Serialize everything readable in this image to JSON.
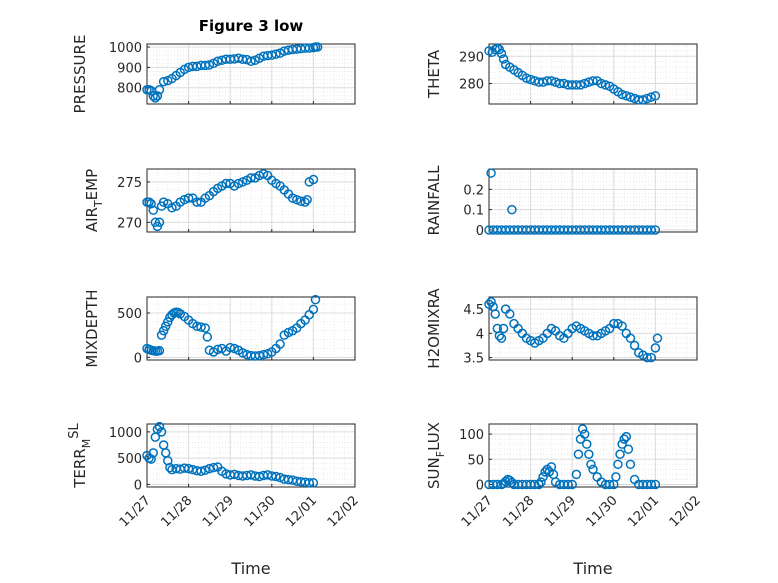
{
  "figure": {
    "title": "Figure 3 low"
  },
  "colors": {
    "series": "#0072BD",
    "axis": "#262626"
  },
  "chart_data": [
    {
      "type": "scatter",
      "id": "pressure",
      "ylabel": "PRESSURE",
      "xlabel": "",
      "ylim": [
        720,
        1015
      ],
      "yticks": [
        800,
        900,
        1000
      ],
      "xticks": [],
      "xlim": [
        0,
        5
      ],
      "x": [
        0,
        0.05,
        0.1,
        0.15,
        0.2,
        0.25,
        0.3,
        0.4,
        0.5,
        0.6,
        0.7,
        0.8,
        0.9,
        1.0,
        1.1,
        1.2,
        1.3,
        1.4,
        1.5,
        1.6,
        1.7,
        1.8,
        1.9,
        2.0,
        2.1,
        2.2,
        2.3,
        2.4,
        2.5,
        2.6,
        2.7,
        2.8,
        2.9,
        3.0,
        3.1,
        3.2,
        3.3,
        3.4,
        3.5,
        3.6,
        3.7,
        3.8,
        3.9,
        4.0,
        4.05,
        4.1
      ],
      "y": [
        790,
        790,
        785,
        760,
        750,
        760,
        790,
        830,
        835,
        845,
        860,
        875,
        890,
        900,
        905,
        905,
        910,
        910,
        912,
        920,
        930,
        935,
        940,
        940,
        942,
        945,
        940,
        938,
        930,
        935,
        945,
        955,
        958,
        960,
        965,
        970,
        980,
        985,
        988,
        990,
        992,
        995,
        995,
        997,
        1000,
        1000
      ]
    },
    {
      "type": "scatter",
      "id": "theta",
      "ylabel": "THETA",
      "xlabel": "",
      "ylim": [
        272.5,
        294.5
      ],
      "yticks": [
        280,
        290
      ],
      "xticks": [],
      "xlim": [
        0,
        5
      ],
      "x": [
        0,
        0.08,
        0.15,
        0.2,
        0.25,
        0.3,
        0.35,
        0.4,
        0.5,
        0.6,
        0.7,
        0.8,
        0.9,
        1.0,
        1.1,
        1.2,
        1.3,
        1.4,
        1.5,
        1.6,
        1.7,
        1.8,
        1.9,
        2.0,
        2.1,
        2.2,
        2.3,
        2.4,
        2.5,
        2.6,
        2.7,
        2.8,
        2.9,
        3.0,
        3.1,
        3.2,
        3.3,
        3.4,
        3.5,
        3.6,
        3.7,
        3.8,
        3.9,
        4.0
      ],
      "y": [
        292,
        291.5,
        292.5,
        293,
        292.5,
        291,
        289,
        287,
        286,
        285,
        284,
        283,
        282,
        281.5,
        281,
        280.5,
        280.5,
        281,
        281,
        280.5,
        280,
        280,
        279.5,
        279.5,
        279.5,
        279.5,
        280,
        280.5,
        281,
        281,
        280,
        279.5,
        279,
        278,
        277,
        276,
        275.5,
        275,
        274.5,
        274,
        274,
        274.5,
        275,
        275.5
      ]
    },
    {
      "type": "scatter",
      "id": "air_temp",
      "ylabel": "AIR",
      "ylabel_sub": "T",
      "ylabel_rest": "EMP",
      "xlabel": "",
      "ylim": [
        268.8,
        276.6
      ],
      "yticks": [
        270,
        275
      ],
      "xticks": [],
      "xlim": [
        0,
        5
      ],
      "x": [
        0,
        0.05,
        0.1,
        0.15,
        0.2,
        0.25,
        0.3,
        0.35,
        0.4,
        0.5,
        0.6,
        0.7,
        0.8,
        0.9,
        1.0,
        1.1,
        1.2,
        1.3,
        1.4,
        1.5,
        1.6,
        1.7,
        1.8,
        1.9,
        2.0,
        2.1,
        2.2,
        2.3,
        2.4,
        2.5,
        2.6,
        2.7,
        2.8,
        2.9,
        3.0,
        3.1,
        3.2,
        3.3,
        3.4,
        3.5,
        3.6,
        3.7,
        3.8,
        3.85,
        3.9,
        4.0
      ],
      "y": [
        272.5,
        272.5,
        272.3,
        271.5,
        270,
        269.5,
        270,
        272,
        272.5,
        272.3,
        271.8,
        272,
        272.5,
        272.8,
        273,
        273,
        272.5,
        272.5,
        273,
        273.3,
        273.8,
        274.2,
        274.5,
        274.8,
        274.8,
        274.5,
        274.8,
        275,
        275.2,
        275.5,
        275.5,
        275.8,
        276,
        275.8,
        275.2,
        274.8,
        274.5,
        274,
        273.5,
        273,
        272.8,
        272.6,
        272.5,
        272.8,
        275,
        275.3
      ]
    },
    {
      "type": "scatter",
      "id": "rainfall",
      "ylabel": "RAINFALL",
      "xlabel": "",
      "ylim": [
        -0.01,
        0.3
      ],
      "yticks": [
        0,
        0.1,
        0.2
      ],
      "xticks": [],
      "xlim": [
        0,
        5
      ],
      "x": [
        0,
        0.05,
        0.1,
        0.2,
        0.3,
        0.4,
        0.5,
        0.6,
        0.7,
        0.8,
        0.9,
        1.0,
        1.1,
        1.2,
        1.3,
        1.4,
        1.5,
        1.6,
        1.7,
        1.8,
        1.9,
        2.0,
        2.1,
        2.2,
        2.3,
        2.4,
        2.5,
        2.6,
        2.7,
        2.8,
        2.9,
        3.0,
        3.1,
        3.2,
        3.3,
        3.4,
        3.5,
        3.6,
        3.7,
        3.8,
        3.9,
        4.0,
        0.55
      ],
      "y": [
        0,
        0.28,
        0,
        0,
        0,
        0,
        0,
        0,
        0,
        0,
        0,
        0,
        0,
        0,
        0,
        0,
        0,
        0,
        0,
        0,
        0,
        0,
        0,
        0,
        0,
        0,
        0,
        0,
        0,
        0,
        0,
        0,
        0,
        0,
        0,
        0,
        0,
        0,
        0,
        0,
        0,
        0,
        0.1
      ]
    },
    {
      "type": "scatter",
      "id": "mixdepth",
      "ylabel": "MIXDEPTH",
      "xlabel": "",
      "ylim": [
        -30,
        680
      ],
      "yticks": [
        0,
        500
      ],
      "xticks": [],
      "xlim": [
        0,
        5
      ],
      "x": [
        0,
        0.05,
        0.1,
        0.15,
        0.2,
        0.25,
        0.3,
        0.35,
        0.4,
        0.45,
        0.5,
        0.55,
        0.6,
        0.65,
        0.7,
        0.75,
        0.8,
        0.9,
        1.0,
        1.1,
        1.2,
        1.3,
        1.4,
        1.45,
        1.5,
        1.6,
        1.7,
        1.8,
        1.9,
        2.0,
        2.1,
        2.2,
        2.3,
        2.4,
        2.5,
        2.6,
        2.7,
        2.8,
        2.9,
        3.0,
        3.1,
        3.2,
        3.3,
        3.4,
        3.5,
        3.6,
        3.7,
        3.8,
        3.9,
        4.0,
        4.05
      ],
      "y": [
        100,
        90,
        80,
        75,
        70,
        70,
        75,
        250,
        300,
        350,
        400,
        450,
        480,
        500,
        510,
        505,
        490,
        460,
        420,
        380,
        350,
        340,
        330,
        230,
        80,
        60,
        90,
        100,
        70,
        110,
        100,
        80,
        50,
        30,
        20,
        15,
        20,
        30,
        40,
        60,
        100,
        150,
        250,
        280,
        300,
        330,
        380,
        420,
        480,
        540,
        650
      ]
    },
    {
      "type": "scatter",
      "id": "h2omixra",
      "ylabel": "H2OMIXRA",
      "xlabel": "",
      "ylim": [
        3.45,
        4.75
      ],
      "yticks": [
        3.5,
        4,
        4.5
      ],
      "xticks": [],
      "xlim": [
        0,
        5
      ],
      "x": [
        0,
        0.05,
        0.1,
        0.15,
        0.2,
        0.25,
        0.3,
        0.35,
        0.4,
        0.5,
        0.6,
        0.7,
        0.8,
        0.9,
        1.0,
        1.1,
        1.2,
        1.3,
        1.4,
        1.5,
        1.6,
        1.7,
        1.8,
        1.9,
        2.0,
        2.1,
        2.2,
        2.3,
        2.4,
        2.5,
        2.6,
        2.7,
        2.8,
        2.9,
        3.0,
        3.1,
        3.2,
        3.3,
        3.4,
        3.5,
        3.6,
        3.7,
        3.8,
        3.9,
        4.0,
        4.05
      ],
      "y": [
        4.6,
        4.65,
        4.55,
        4.4,
        4.1,
        3.95,
        3.9,
        4.1,
        4.5,
        4.4,
        4.2,
        4.1,
        4.0,
        3.9,
        3.85,
        3.8,
        3.85,
        3.9,
        4.0,
        4.1,
        4.05,
        3.95,
        3.9,
        4.0,
        4.1,
        4.15,
        4.1,
        4.05,
        4.0,
        3.95,
        3.95,
        4.0,
        4.05,
        4.1,
        4.2,
        4.2,
        4.15,
        4.0,
        3.9,
        3.75,
        3.6,
        3.55,
        3.5,
        3.5,
        3.7,
        3.9
      ]
    },
    {
      "type": "scatter",
      "id": "terr_msl",
      "ylabel": "TERR",
      "ylabel_sub": "M",
      "ylabel_sup": "SL",
      "xlabel": "Time",
      "ylim": [
        -50,
        1150
      ],
      "yticks": [
        0,
        500,
        1000
      ],
      "xticks": [
        "11/27",
        "11/28",
        "11/29",
        "11/30",
        "12/01",
        "12/02"
      ],
      "xlim": [
        0,
        5
      ],
      "x": [
        0,
        0.05,
        0.1,
        0.15,
        0.2,
        0.25,
        0.3,
        0.35,
        0.4,
        0.45,
        0.5,
        0.55,
        0.6,
        0.7,
        0.8,
        0.9,
        1.0,
        1.1,
        1.2,
        1.3,
        1.4,
        1.5,
        1.6,
        1.7,
        1.8,
        1.9,
        2.0,
        2.1,
        2.2,
        2.3,
        2.4,
        2.5,
        2.6,
        2.7,
        2.8,
        2.9,
        3.0,
        3.1,
        3.2,
        3.3,
        3.4,
        3.5,
        3.6,
        3.7,
        3.8,
        3.9,
        4.0
      ],
      "y": [
        550,
        500,
        480,
        600,
        900,
        1050,
        1100,
        1000,
        750,
        600,
        450,
        320,
        280,
        300,
        290,
        310,
        300,
        280,
        260,
        250,
        270,
        300,
        320,
        330,
        250,
        200,
        180,
        190,
        170,
        160,
        170,
        180,
        160,
        150,
        170,
        180,
        160,
        150,
        130,
        100,
        90,
        80,
        60,
        50,
        40,
        30,
        30
      ]
    },
    {
      "type": "scatter",
      "id": "sun_flux",
      "ylabel": "SUN",
      "ylabel_sub": "F",
      "ylabel_rest": "LUX",
      "xlabel": "Time",
      "ylim": [
        -5,
        120
      ],
      "yticks": [
        0,
        50,
        100
      ],
      "xticks": [
        "11/27",
        "11/28",
        "11/29",
        "11/30",
        "12/01",
        "12/02"
      ],
      "xlim": [
        0,
        5
      ],
      "x": [
        0,
        0.1,
        0.2,
        0.3,
        0.35,
        0.4,
        0.45,
        0.5,
        0.55,
        0.6,
        0.7,
        0.8,
        0.9,
        1.0,
        1.1,
        1.2,
        1.25,
        1.3,
        1.35,
        1.4,
        1.45,
        1.5,
        1.55,
        1.6,
        1.7,
        1.8,
        1.9,
        2.0,
        2.1,
        2.15,
        2.2,
        2.25,
        2.3,
        2.35,
        2.4,
        2.45,
        2.5,
        2.6,
        2.7,
        2.8,
        2.9,
        3.0,
        3.05,
        3.1,
        3.15,
        3.2,
        3.25,
        3.3,
        3.35,
        3.4,
        3.5,
        3.6,
        3.7,
        3.8,
        3.9,
        4.0
      ],
      "y": [
        0,
        0,
        0,
        0,
        2,
        6,
        10,
        8,
        4,
        0,
        0,
        0,
        0,
        0,
        0,
        0,
        5,
        15,
        25,
        30,
        25,
        35,
        20,
        5,
        0,
        0,
        0,
        0,
        20,
        60,
        90,
        110,
        100,
        80,
        60,
        40,
        30,
        15,
        5,
        0,
        0,
        0,
        15,
        40,
        60,
        80,
        90,
        95,
        70,
        40,
        10,
        0,
        0,
        0,
        0,
        0
      ]
    }
  ]
}
